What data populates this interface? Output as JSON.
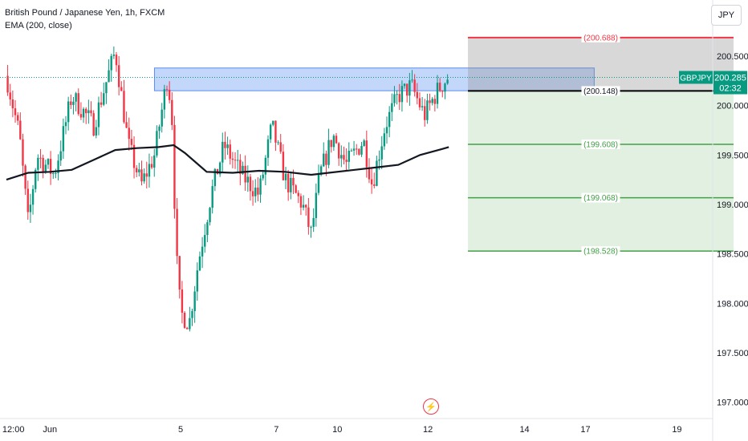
{
  "header": {
    "title": "British Pound / Japanese Yen, 1h, FXCM",
    "indicator": "EMA (200, close)"
  },
  "currency_button": "JPY",
  "alert_icon": "lightning-icon",
  "colors": {
    "up": "#089981",
    "down": "#f23645",
    "ema": "#131722",
    "zone": "#7aa7f5",
    "stop": "#f23645",
    "target": "#43a047",
    "entry": "#000000",
    "price_tag": "#089981"
  },
  "chart_data": {
    "type": "candlestick",
    "title": "British Pound / Japanese Yen, 1h, FXCM",
    "ylim": [
      196.9,
      201.05
    ],
    "y_ticks": [
      "200.500",
      "200.000",
      "199.500",
      "199.000",
      "198.500",
      "198.000",
      "197.500",
      "197.000"
    ],
    "x_ticks": [
      {
        "label": "12:00",
        "x": 0.08
      },
      {
        "label": "Jun",
        "x": 0.5
      },
      {
        "label": "5",
        "x": 2.0
      },
      {
        "label": "7",
        "x": 3.1
      },
      {
        "label": "10",
        "x": 3.8
      },
      {
        "label": "12",
        "x": 4.84
      },
      {
        "label": "14",
        "x": 5.95
      },
      {
        "label": "17",
        "x": 6.65
      },
      {
        "label": "19",
        "x": 7.7
      }
    ],
    "price_path": [
      [
        0.0,
        200.3
      ],
      [
        0.15,
        199.7
      ],
      [
        0.25,
        198.8
      ],
      [
        0.35,
        199.5
      ],
      [
        0.55,
        199.3
      ],
      [
        0.75,
        200.1
      ],
      [
        1.0,
        199.8
      ],
      [
        1.25,
        200.55
      ],
      [
        1.4,
        199.6
      ],
      [
        1.55,
        199.2
      ],
      [
        1.7,
        199.5
      ],
      [
        1.85,
        200.3
      ],
      [
        1.9,
        199.9
      ],
      [
        1.95,
        198.5
      ],
      [
        2.0,
        197.9
      ],
      [
        2.1,
        197.8
      ],
      [
        2.2,
        198.4
      ],
      [
        2.35,
        199.1
      ],
      [
        2.5,
        199.6
      ],
      [
        2.7,
        199.3
      ],
      [
        2.9,
        199.1
      ],
      [
        3.05,
        199.8
      ],
      [
        3.2,
        199.25
      ],
      [
        3.4,
        199.0
      ],
      [
        3.5,
        198.7
      ],
      [
        3.6,
        199.3
      ],
      [
        3.75,
        199.7
      ],
      [
        3.9,
        199.4
      ],
      [
        4.1,
        199.65
      ],
      [
        4.2,
        199.2
      ],
      [
        4.35,
        199.8
      ],
      [
        4.5,
        200.1
      ],
      [
        4.65,
        200.2
      ],
      [
        4.8,
        199.9
      ],
      [
        4.95,
        200.15
      ],
      [
        5.08,
        200.3
      ]
    ],
    "ema_points": [
      [
        0.0,
        199.25
      ],
      [
        0.25,
        199.32
      ],
      [
        0.5,
        199.33
      ],
      [
        0.75,
        199.35
      ],
      [
        1.0,
        199.45
      ],
      [
        1.25,
        199.55
      ],
      [
        1.5,
        199.57
      ],
      [
        1.75,
        199.58
      ],
      [
        1.92,
        199.6
      ],
      [
        2.05,
        199.52
      ],
      [
        2.3,
        199.33
      ],
      [
        2.6,
        199.32
      ],
      [
        2.9,
        199.34
      ],
      [
        3.2,
        199.33
      ],
      [
        3.5,
        199.3
      ],
      [
        3.7,
        199.32
      ],
      [
        4.0,
        199.35
      ],
      [
        4.3,
        199.38
      ],
      [
        4.5,
        199.4
      ],
      [
        4.75,
        199.5
      ],
      [
        5.0,
        199.56
      ],
      [
        5.08,
        199.58
      ]
    ],
    "series": [
      {
        "name": "EMA (200, close)",
        "period": 200
      }
    ],
    "current_price": "200.285",
    "symbol": "GBPJPY",
    "countdown": "02:32",
    "supply_zone": {
      "from": 200.15,
      "to": 200.38,
      "x_start": 1.7,
      "x_end": 6.75
    },
    "position": {
      "x_start": 5.3,
      "x_end": 8.35,
      "entry": 200.148,
      "stop": 200.688,
      "targets": [
        199.608,
        199.068,
        198.528
      ],
      "labels": {
        "stop": "(200.688)",
        "entry": "(200.148)",
        "t1": "(199.608)",
        "t2": "(199.068)",
        "t3": "(198.528)"
      }
    },
    "grid": false,
    "legend": "top-left"
  }
}
